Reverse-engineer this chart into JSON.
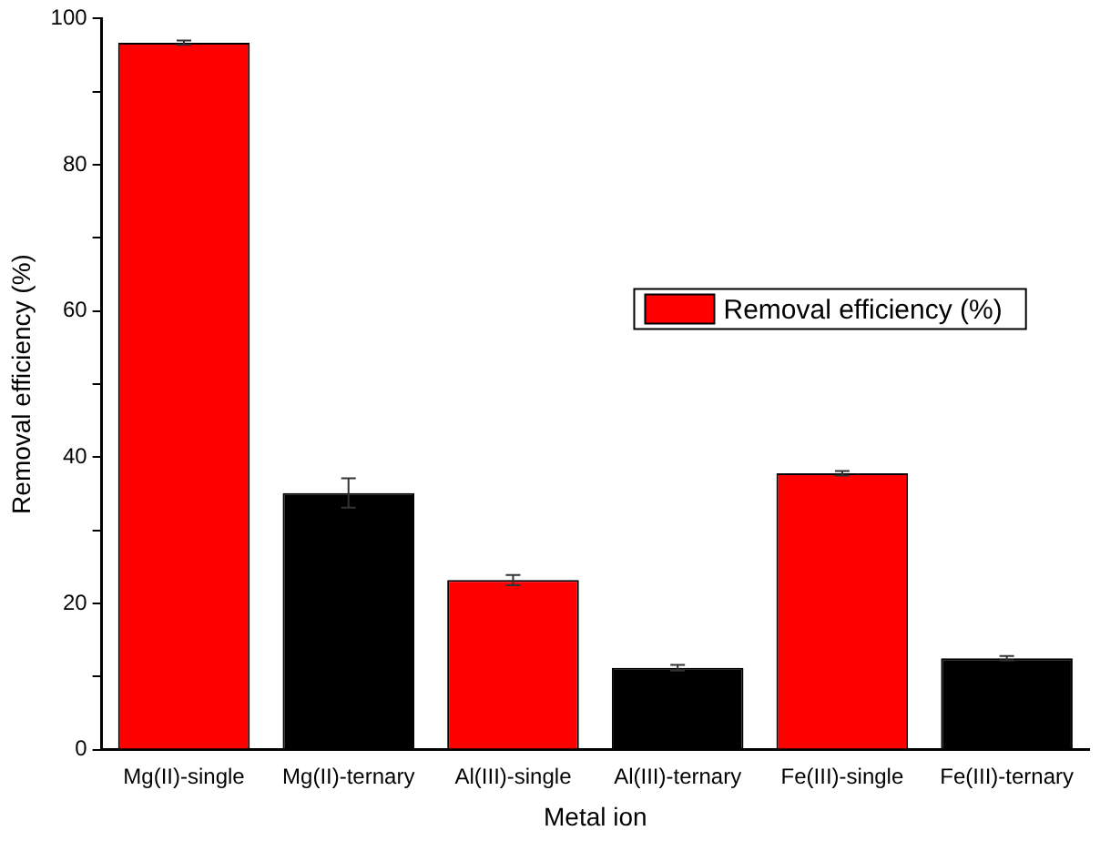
{
  "chart_data": {
    "type": "bar",
    "xlabel": "Metal ion",
    "ylabel": "Removal efficiency (%)",
    "categories": [
      "Mg(II)-single",
      "Mg(II)-ternary",
      "Al(III)-single",
      "Al(III)-ternary",
      "Fe(III)-single",
      "Fe(III)-ternary"
    ],
    "series": [
      {
        "name": "Removal efficiency (%)",
        "color": "#ff0000",
        "colors": [
          "#ff0000",
          "#000000",
          "#ff0000",
          "#000000",
          "#ff0000",
          "#000000"
        ],
        "values": [
          96.7,
          35.1,
          23.2,
          11.2,
          37.8,
          12.5
        ],
        "errors": [
          0.3,
          2,
          0.7,
          0.4,
          0.3,
          0.3
        ]
      }
    ],
    "ylim": [
      0,
      100
    ],
    "yticks": [
      0,
      {
        "value": 10,
        "label": null
      },
      20,
      {
        "value": 30,
        "label": null
      },
      40,
      {
        "value": 50,
        "label": null
      },
      60,
      {
        "value": 70,
        "label": null
      },
      80,
      {
        "value": 90,
        "label": null
      },
      100
    ],
    "grid": false,
    "legend": "right"
  }
}
